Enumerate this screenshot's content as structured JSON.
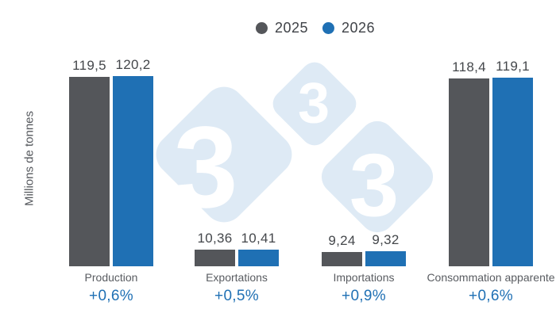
{
  "chart_data": {
    "type": "bar",
    "title": "",
    "ylabel": "Millions de tonnes",
    "xlabel": "",
    "grid": false,
    "legend_position": "top",
    "ylim": [
      0,
      132
    ],
    "categories": [
      "Production",
      "Exportations",
      "Importations",
      "Consommation apparente"
    ],
    "series": [
      {
        "name": "2025",
        "color": "#54565a",
        "values": [
          119.5,
          10.36,
          9.24,
          118.4
        ],
        "labels": [
          "119,5",
          "10,36",
          "9,24",
          "118,4"
        ]
      },
      {
        "name": "2026",
        "color": "#1f70b4",
        "values": [
          120.2,
          10.41,
          9.32,
          119.1
        ],
        "labels": [
          "120,2",
          "10,41",
          "9,32",
          "119,1"
        ]
      }
    ],
    "deltas": [
      "+0,6%",
      "+0,5%",
      "+0,9%",
      "+0,6%"
    ],
    "delta_color": "#1f70b4"
  },
  "watermark": {
    "glyph": "3",
    "color": "#deeaf5",
    "glyph_color": "#ffffff"
  }
}
